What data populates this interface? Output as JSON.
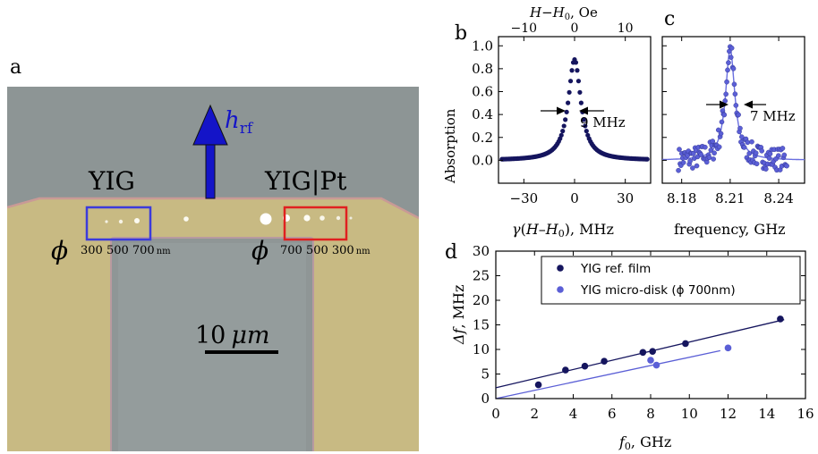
{
  "panels": {
    "a": {
      "letter": "a",
      "label_yig": "YIG",
      "label_yig_pt": "YIG|Pt",
      "field_label": "h",
      "field_sub": "rf",
      "phi_symbol": "ϕ",
      "left_sizes": "300 500 700",
      "left_unit": "nm",
      "right_sizes": "700 500 300",
      "right_unit": "nm",
      "scale_bar_value": "10",
      "scale_bar_unit": "μm",
      "colors": {
        "substrate": "#8d9595",
        "pad": "#c8ba83",
        "window": "#8f9696",
        "box_yig": "#3b3bdc",
        "box_yig_pt": "#e02020",
        "arrow": "#1414c8"
      }
    },
    "b": {
      "letter": "b",
      "top_axis_title": "H−H",
      "top_axis_sub": "0",
      "top_axis_unit": ", Oe",
      "annotation": "9 MHz"
    },
    "c": {
      "letter": "c",
      "annotation": "7 MHz"
    },
    "d": {
      "letter": "d"
    }
  },
  "chart_data": [
    {
      "id": "b",
      "type": "scatter",
      "xlabel": "γ(H–H0), MHz",
      "ylabel": "Absorption",
      "xlim": [
        -45,
        45
      ],
      "ylim": [
        -0.2,
        1.08
      ],
      "xticks": [
        "-30",
        "0",
        "30"
      ],
      "yticks": [
        "0.0",
        "0.2",
        "0.4",
        "0.6",
        "0.8",
        "1.0"
      ],
      "top_xticks": [
        "−10",
        "0",
        "10"
      ],
      "lorentzian_fwhm_mhz": 9,
      "peak": 0.88,
      "color": "#15155e"
    },
    {
      "id": "c",
      "type": "scatter",
      "xlabel": "frequency, GHz",
      "xlim": [
        8.168,
        8.256
      ],
      "ylim": [
        -0.2,
        1.08
      ],
      "xticks": [
        "8.18",
        "8.21",
        "8.24"
      ],
      "center_ghz": 8.21,
      "linewidth_mhz": 7,
      "peak": 0.97,
      "color": "#5b5fd6"
    },
    {
      "id": "d",
      "type": "scatter",
      "xlabel": "f0, GHz",
      "ylabel": "Δf, MHz",
      "xlim": [
        0,
        16
      ],
      "ylim": [
        0,
        30
      ],
      "xticks": [
        "0",
        "2",
        "4",
        "6",
        "8",
        "10",
        "12",
        "14",
        "16"
      ],
      "yticks": [
        "0",
        "5",
        "10",
        "15",
        "20",
        "25",
        "30"
      ],
      "legend_position": "top-right",
      "series": [
        {
          "name": "YIG ref. film",
          "color": "#15155e",
          "x": [
            2.2,
            3.6,
            4.6,
            5.6,
            7.6,
            8.1,
            9.8,
            14.7
          ],
          "y": [
            2.8,
            5.8,
            6.6,
            7.6,
            9.4,
            9.6,
            11.2,
            16.2
          ],
          "fit": {
            "slope": 0.93,
            "intercept": 2.2,
            "x_range": [
              0,
              14.9
            ]
          }
        },
        {
          "name": "YIG micro-disk (ϕ 700nm)",
          "color": "#5b5fd6",
          "x": [
            8.0,
            8.3,
            12.0
          ],
          "y": [
            7.8,
            6.8,
            10.3
          ],
          "fit": {
            "slope": 0.84,
            "intercept": 0.0,
            "x_range": [
              0,
              11.6
            ]
          }
        }
      ]
    }
  ]
}
